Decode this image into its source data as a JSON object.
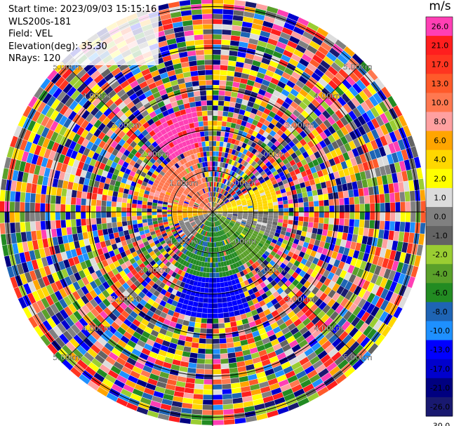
{
  "header": {
    "start_time": "Start time: 2023/09/03 15:15:16",
    "instrument": "WLS200s-181",
    "field": "Field: VEL",
    "elevation": "Elevation(deg): 35.30",
    "nrays": "NRays: 120"
  },
  "chart_data": {
    "type": "ppi",
    "field": "VEL",
    "n_rays": 120,
    "ring_labels": [
      "1.00km",
      "2.00km",
      "3.00km",
      "4.00km",
      "5.00km"
    ],
    "ring_distances_km": [
      1,
      2,
      3,
      4,
      5
    ],
    "max_range_km": 5.2,
    "colorbar": {
      "unit": "m/s",
      "ticks": [
        "26.0",
        "21.0",
        "17.0",
        "13.0",
        "10.0",
        "8.0",
        "6.0",
        "4.0",
        "2.0",
        "1.0",
        "0.0",
        "-1.0",
        "-2.0",
        "-4.0",
        "-6.0",
        "-8.0",
        "-10.0",
        "-13.0",
        "-17.0",
        "-21.0",
        "-26.0",
        "-30.0"
      ],
      "colors": [
        "#ff3fb4",
        "#ff1e1e",
        "#ff3520",
        "#ff5a2a",
        "#ff7850",
        "#ffa0a0",
        "#ffa500",
        "#ffd700",
        "#ffff00",
        "#dcdcdc",
        "#808080",
        "#636363",
        "#9acd32",
        "#5aa02a",
        "#228b22",
        "#1e64b4",
        "#1e90ff",
        "#0000ff",
        "#0000cd",
        "#000080",
        "#191970"
      ]
    },
    "velocity_sectors": [
      {
        "azimuth_deg": [
          282,
          345
        ],
        "range_km": [
          0,
          1.6
        ],
        "value": 8.0
      },
      {
        "azimuth_deg": [
          320,
          350
        ],
        "range_km": [
          1.6,
          2.6
        ],
        "value": 21.0
      },
      {
        "azimuth_deg": [
          255,
          300
        ],
        "range_km": [
          0,
          1.0
        ],
        "value": 4.0
      },
      {
        "azimuth_deg": [
          60,
          90
        ],
        "range_km": [
          0,
          1.6
        ],
        "value": 2.0
      },
      {
        "azimuth_deg": [
          90,
          115
        ],
        "range_km": [
          0,
          1.6
        ],
        "value": -1.0
      },
      {
        "azimuth_deg": [
          115,
          150
        ],
        "range_km": [
          0,
          1.6
        ],
        "value": -6.0
      },
      {
        "azimuth_deg": [
          150,
          215
        ],
        "range_km": [
          0,
          1.6
        ],
        "value": -8.0
      },
      {
        "azimuth_deg": [
          160,
          200
        ],
        "range_km": [
          1.4,
          2.6
        ],
        "value": -17.0
      },
      {
        "azimuth_deg": [
          220,
          255
        ],
        "range_km": [
          0,
          0.9
        ],
        "value": -1.0
      }
    ]
  }
}
